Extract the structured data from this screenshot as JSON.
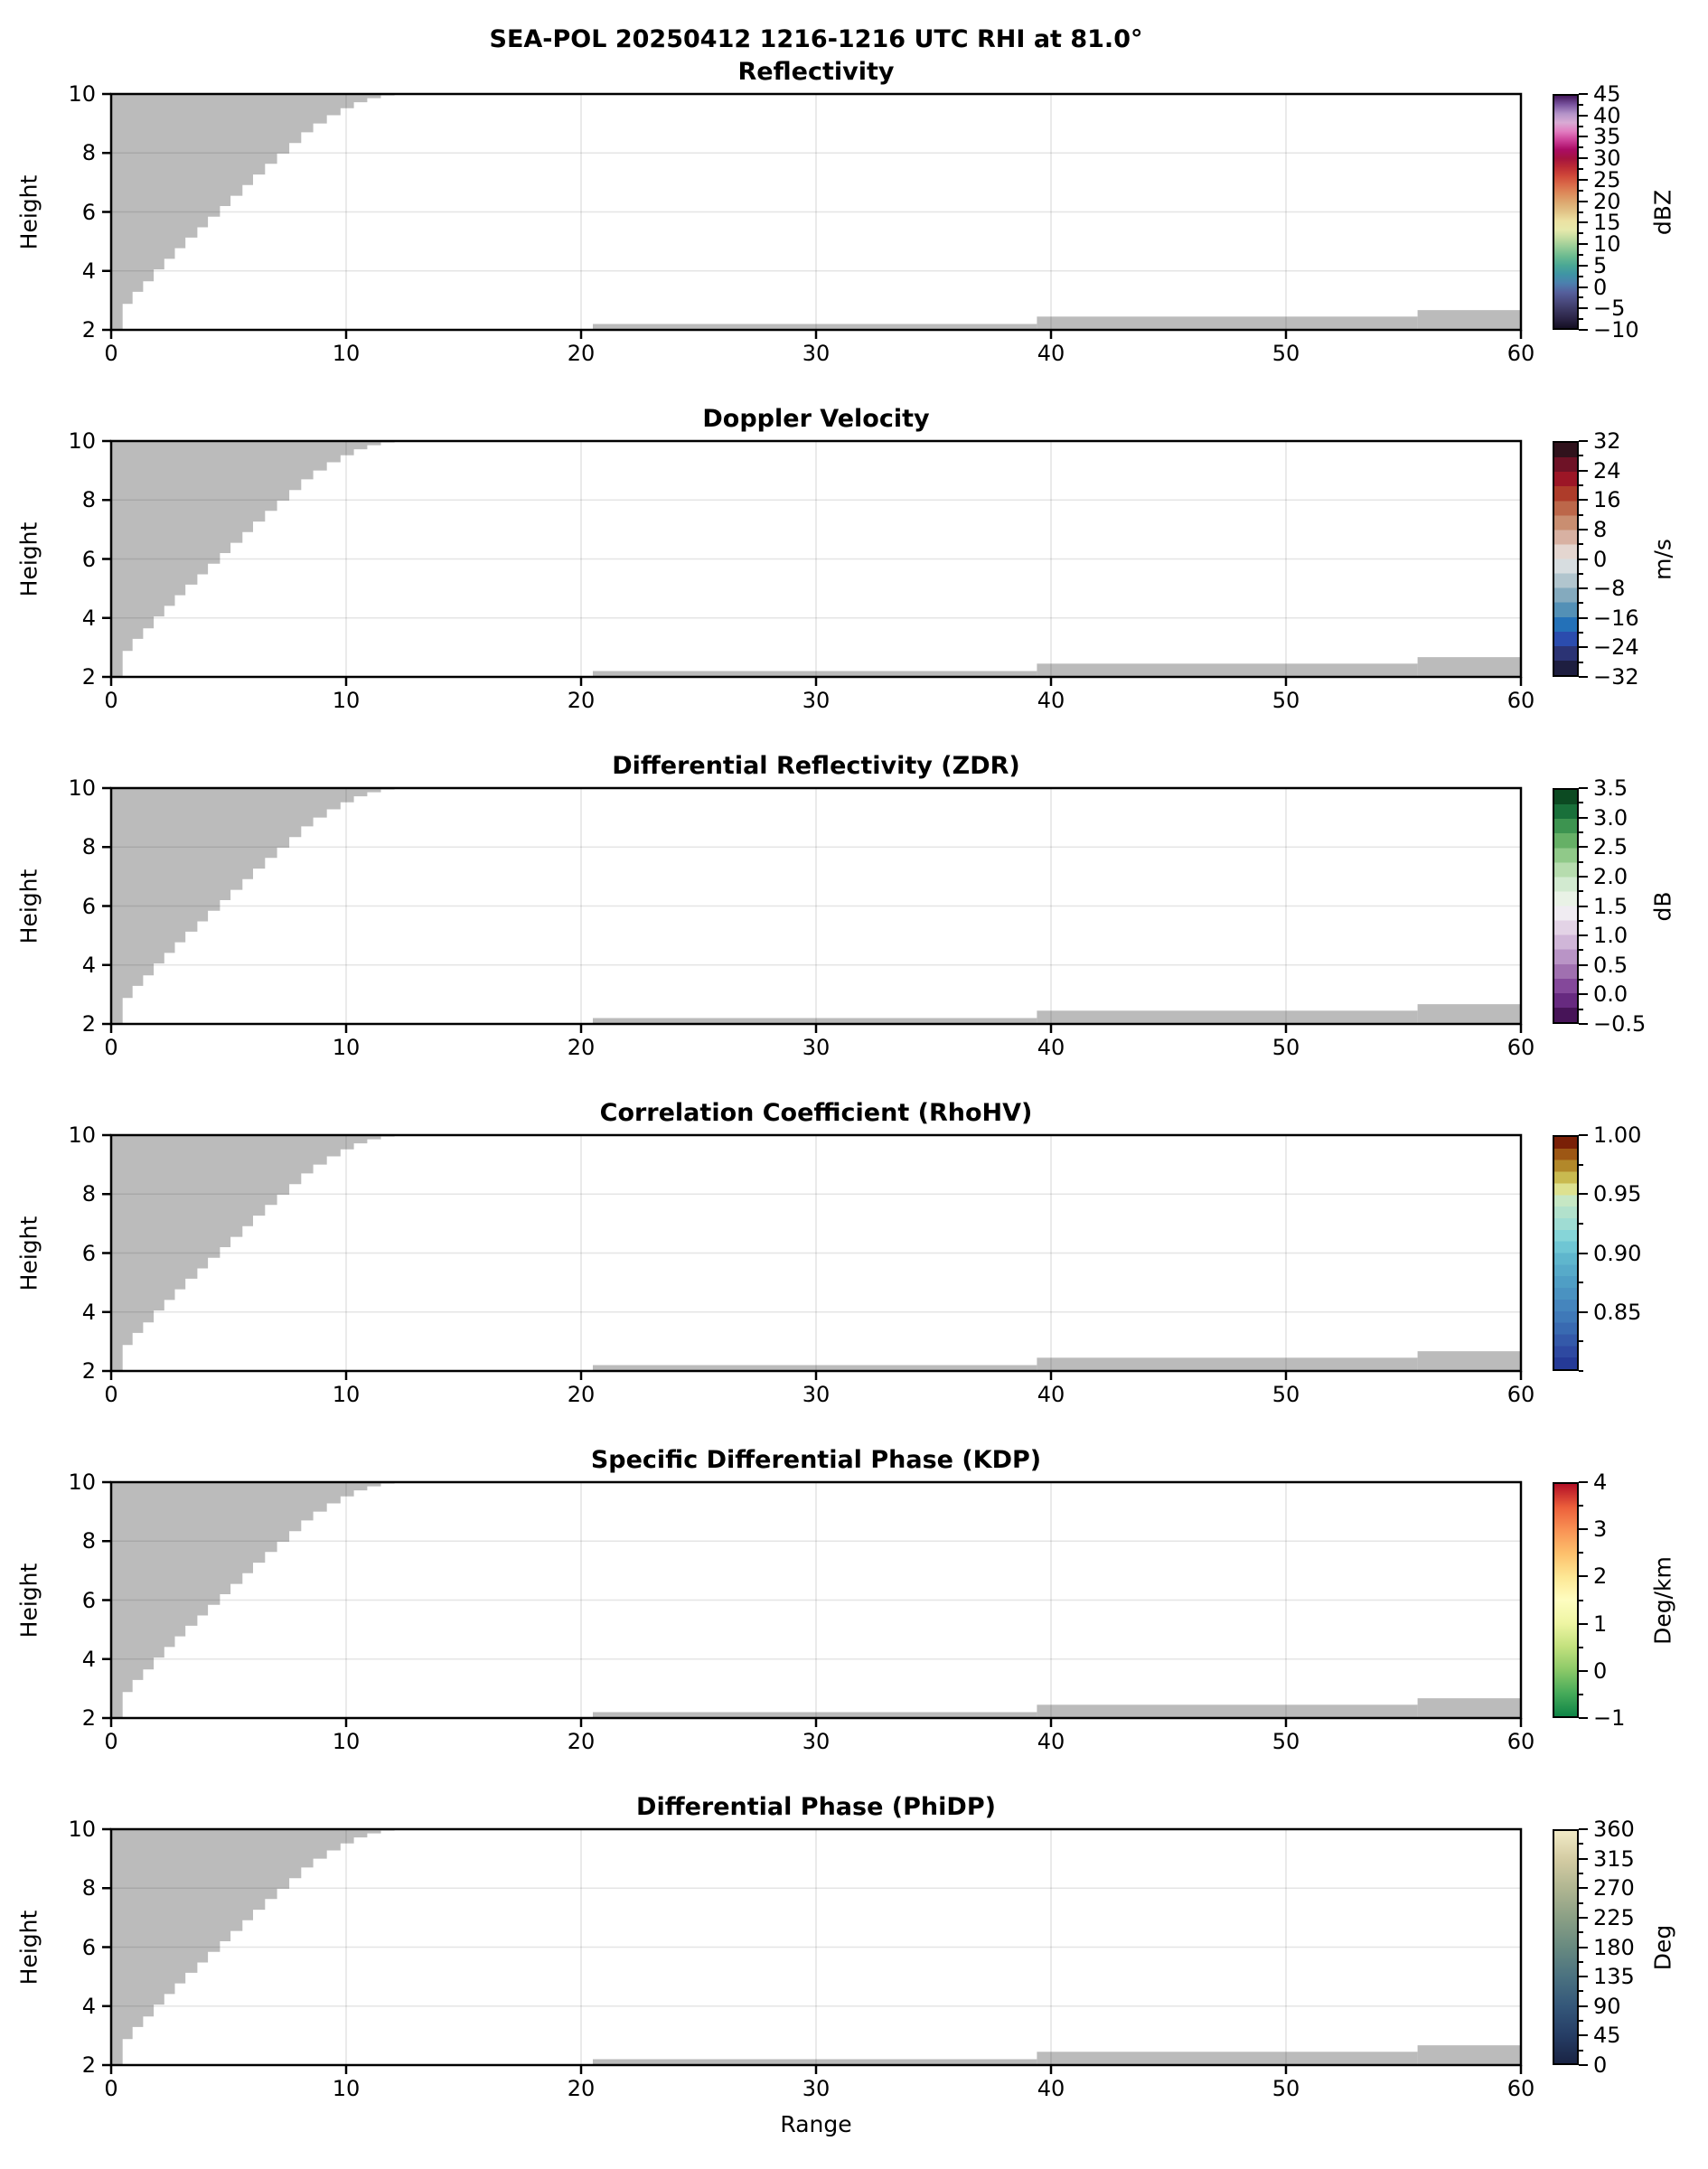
{
  "chart_data": {
    "type": "heatmap",
    "suptitle": "SEA-POL 20250412 1216-1216 UTC RHI at 81.0°",
    "xlabel": "Range",
    "ylabel": "Height",
    "xlim": [
      0,
      60
    ],
    "ylim": [
      2,
      10
    ],
    "x_tick_values": [
      0,
      10,
      20,
      30,
      40,
      50,
      60
    ],
    "x_tick_labels": [
      "0",
      "10",
      "20",
      "30",
      "40",
      "50",
      "60"
    ],
    "y_tick_values": [
      2,
      4,
      6,
      8,
      10
    ],
    "y_tick_labels": [
      "2",
      "4",
      "6",
      "8",
      "10"
    ],
    "grid_x": [
      10,
      20,
      30,
      40,
      50
    ],
    "grid_y": [
      4,
      6,
      8
    ],
    "grid_on": true,
    "masked_regions": {
      "color": "#bbbbbb",
      "wedge_columns": [
        [
          0.49,
          2.0
        ],
        [
          0.91,
          2.88
        ],
        [
          1.36,
          3.29
        ],
        [
          1.81,
          3.65
        ],
        [
          2.26,
          4.05
        ],
        [
          2.71,
          4.41
        ],
        [
          3.16,
          4.77
        ],
        [
          3.67,
          5.13
        ],
        [
          4.12,
          5.48
        ],
        [
          4.63,
          5.84
        ],
        [
          5.08,
          6.2
        ],
        [
          5.59,
          6.55
        ],
        [
          6.04,
          6.91
        ],
        [
          6.55,
          7.27
        ],
        [
          7.06,
          7.63
        ],
        [
          7.58,
          7.98
        ],
        [
          8.09,
          8.34
        ],
        [
          8.6,
          8.7
        ],
        [
          9.18,
          9.0
        ],
        [
          9.76,
          9.28
        ],
        [
          10.33,
          9.52
        ],
        [
          10.9,
          9.72
        ],
        [
          11.48,
          9.86
        ],
        [
          12.06,
          9.95
        ],
        [
          12.64,
          9.99
        ]
      ],
      "strips": [
        [
          20.5,
          39.4,
          2.0,
          2.2
        ],
        [
          39.4,
          55.6,
          2.0,
          2.45
        ],
        [
          55.6,
          60.0,
          2.0,
          2.67
        ]
      ]
    },
    "panels": [
      {
        "title": "Reflectivity",
        "colorbar": {
          "unit": "dBZ",
          "min": -10,
          "max": 45,
          "minor_step": 2.5,
          "discrete": false,
          "tick_values": [
            45,
            40,
            35,
            30,
            25,
            20,
            15,
            10,
            5,
            0,
            -5,
            -10
          ],
          "tick_labels": [
            "45",
            "40",
            "35",
            "30",
            "25",
            "20",
            "15",
            "10",
            "5",
            "0",
            "−5",
            "−10"
          ],
          "colors": [
            "#140f23",
            "#2a2344",
            "#3a3660",
            "#4a4a7e",
            "#555f9c",
            "#4c7fae",
            "#3f94a5",
            "#4aa795",
            "#6aba90",
            "#94cb97",
            "#c0dba0",
            "#e6e9ac",
            "#ece1a2",
            "#e2c488",
            "#ddab72",
            "#dd8d5c",
            "#da6c4a",
            "#d04a3a",
            "#bc2c35",
            "#a5133f",
            "#ab0d66",
            "#cc3f97",
            "#e17cc0",
            "#d9abd4",
            "#b393c8",
            "#7a55a0",
            "#43175c"
          ]
        }
      },
      {
        "title": "Doppler Velocity",
        "colorbar": {
          "unit": "m/s",
          "min": -32,
          "max": 32,
          "minor_step": 4,
          "discrete": true,
          "tick_values": [
            32,
            24,
            16,
            8,
            0,
            -8,
            -16,
            -24,
            -32
          ],
          "tick_labels": [
            "32",
            "24",
            "16",
            "8",
            "0",
            "−8",
            "−16",
            "−24",
            "−32"
          ],
          "colors": [
            "#1e1e40",
            "#2b3374",
            "#2b4cae",
            "#2471b8",
            "#5390b6",
            "#84aabe",
            "#b1c5ce",
            "#d7dde0",
            "#e4d6d0",
            "#d8b1a2",
            "#c98e71",
            "#bc674a",
            "#ae3c2a",
            "#9c1626",
            "#6e1226",
            "#30121c"
          ]
        }
      },
      {
        "title": "Differential Reflectivity (ZDR)",
        "colorbar": {
          "unit": "dB",
          "min": -0.5,
          "max": 3.5,
          "minor_step": 0.25,
          "discrete": true,
          "tick_values": [
            3.5,
            3.0,
            2.5,
            2.0,
            1.5,
            1.0,
            0.5,
            0.0,
            -0.5
          ],
          "tick_labels": [
            "3.5",
            "3.0",
            "2.5",
            "2.0",
            "1.5",
            "1.0",
            "0.5",
            "0.0",
            "−0.5"
          ],
          "colors": [
            "#471458",
            "#672a80",
            "#84489a",
            "#a070b0",
            "#b994c6",
            "#d0b6d8",
            "#e3d3e6",
            "#f0ecf2",
            "#e9f2e6",
            "#d2ead0",
            "#b6dcae",
            "#90c989",
            "#66b066",
            "#3d9450",
            "#19703a",
            "#0c4a22"
          ]
        }
      },
      {
        "title": "Correlation Coefficient (RhoHV)",
        "colorbar": {
          "unit": "",
          "min": 0.8,
          "max": 1.0,
          "minor_step": 0.025,
          "discrete": true,
          "tick_values": [
            1.0,
            0.95,
            0.9,
            0.85
          ],
          "tick_labels": [
            "1.00",
            "0.95",
            "0.90",
            "0.85"
          ],
          "colors": [
            "#253a97",
            "#2e49a1",
            "#3459a9",
            "#396ab1",
            "#3f79b8",
            "#4585bd",
            "#4a92c1",
            "#4f9ec5",
            "#57aac9",
            "#5fb6cd",
            "#6fc6d4",
            "#86d5d8",
            "#9fdcd3",
            "#b2e1cc",
            "#c6e7c4",
            "#dde190",
            "#c9ba50",
            "#b2882a",
            "#9d5714",
            "#7a2007"
          ]
        }
      },
      {
        "title": "Specific Differential Phase (KDP)",
        "colorbar": {
          "unit": "Deg/km",
          "min": -1,
          "max": 4,
          "minor_step": 0.5,
          "discrete": false,
          "tick_values": [
            4,
            3,
            2,
            1,
            0,
            -1
          ],
          "tick_labels": [
            "4",
            "3",
            "2",
            "1",
            "0",
            "−1"
          ],
          "colors": [
            "#0f8547",
            "#47ab5a",
            "#8cc968",
            "#c3e17e",
            "#eef5a3",
            "#fefdc0",
            "#fde794",
            "#fdc06c",
            "#f99355",
            "#ec5f3b",
            "#b30f26"
          ]
        }
      },
      {
        "title": "Differential Phase (PhiDP)",
        "colorbar": {
          "unit": "Deg",
          "min": 0,
          "max": 360,
          "minor_step": 22.5,
          "discrete": false,
          "tick_values": [
            360,
            315,
            270,
            225,
            180,
            135,
            90,
            45,
            0
          ],
          "tick_labels": [
            "360",
            "315",
            "270",
            "225",
            "180",
            "135",
            "90",
            "45",
            "0"
          ],
          "colors": [
            "#1a2444",
            "#263e66",
            "#35587a",
            "#4b7280",
            "#688a80",
            "#8a9f85",
            "#afb591",
            "#d3cba2",
            "#f1eac6"
          ]
        }
      }
    ]
  }
}
